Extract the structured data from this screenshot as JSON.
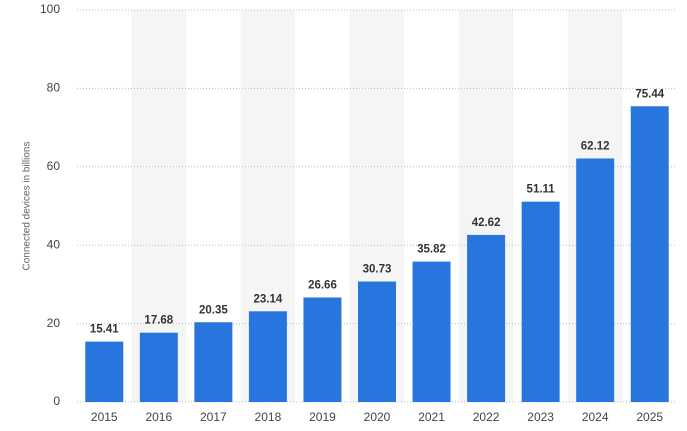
{
  "chart_data": {
    "type": "bar",
    "y_label": "Connected devices in billions",
    "categories": [
      "2015",
      "2016",
      "2017",
      "2018",
      "2019",
      "2020",
      "2021",
      "2022",
      "2023",
      "2024",
      "2025"
    ],
    "values": [
      15.41,
      17.68,
      20.35,
      23.14,
      26.66,
      30.73,
      35.82,
      42.62,
      51.11,
      62.12,
      75.44
    ],
    "color": "#2876dd",
    "ylim": [
      0,
      100
    ],
    "yticks": [
      0,
      20,
      40,
      60,
      80,
      100
    ],
    "grid": true
  }
}
